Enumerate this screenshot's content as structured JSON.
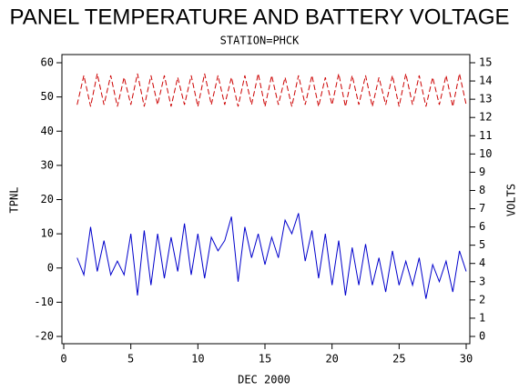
{
  "chart_data": {
    "type": "line",
    "title": "PANEL TEMPERATURE AND BATTERY VOLTAGE",
    "subtitle": "STATION=PHCK",
    "x_label": "DEC 2000",
    "y_label": "TPNL",
    "y2_label": "VOLTS",
    "xlim": [
      0,
      30
    ],
    "xticks": [
      0,
      5,
      10,
      15,
      20,
      25,
      30
    ],
    "ylim": [
      -20,
      60
    ],
    "yticks": [
      -20,
      -10,
      0,
      10,
      20,
      30,
      40,
      50,
      60
    ],
    "y2lim": [
      0,
      15
    ],
    "y2ticks": [
      0,
      1,
      2,
      3,
      4,
      5,
      6,
      7,
      8,
      9,
      10,
      11,
      12,
      13,
      14,
      15
    ],
    "x": [
      1,
      1.5,
      2,
      2.5,
      3,
      3.5,
      4,
      4.5,
      5,
      5.5,
      6,
      6.5,
      7,
      7.5,
      8,
      8.5,
      9,
      9.5,
      10,
      10.5,
      11,
      11.5,
      12,
      12.5,
      13,
      13.5,
      14,
      14.5,
      15,
      15.5,
      16,
      16.5,
      17,
      17.5,
      18,
      18.5,
      19,
      19.5,
      20,
      20.5,
      21,
      21.5,
      22,
      22.5,
      23,
      23.5,
      24,
      24.5,
      25,
      25.5,
      26,
      26.5,
      27,
      27.5,
      28,
      28.5,
      29,
      29.5,
      30
    ],
    "series": [
      {
        "name": "TPNL",
        "color": "#0000cc",
        "values": [
          3,
          -2,
          12,
          -1,
          8,
          -2,
          2,
          -2,
          10,
          -8,
          11,
          -5,
          10,
          -3,
          9,
          -1,
          13,
          -2,
          10,
          -3,
          9,
          5,
          8,
          15,
          -4,
          12,
          3,
          10,
          1,
          9,
          3,
          14,
          10,
          16,
          2,
          11,
          -3,
          10,
          -5,
          8,
          -8,
          6,
          -5,
          7,
          -5,
          3,
          -7,
          5,
          -5,
          2,
          -5,
          3,
          -9,
          1,
          -4,
          2,
          -7,
          5,
          -1
        ]
      },
      {
        "name": "VOLTS",
        "color": "#cc0000",
        "axis": "y2",
        "dashed": true,
        "values": [
          12.7,
          14.3,
          12.6,
          14.4,
          12.7,
          14.3,
          12.6,
          14.2,
          12.7,
          14.4,
          12.6,
          14.3,
          12.7,
          14.3,
          12.6,
          14.2,
          12.7,
          14.3,
          12.6,
          14.4,
          12.7,
          14.3,
          12.7,
          14.2,
          12.6,
          14.3,
          12.7,
          14.4,
          12.6,
          14.3,
          12.7,
          14.2,
          12.6,
          14.3,
          12.7,
          14.3,
          12.6,
          14.2,
          12.7,
          14.4,
          12.6,
          14.3,
          12.7,
          14.3,
          12.6,
          14.2,
          12.7,
          14.3,
          12.6,
          14.4,
          12.7,
          14.3,
          12.6,
          14.2,
          12.7,
          14.3,
          12.6,
          14.4,
          12.7
        ]
      }
    ]
  }
}
